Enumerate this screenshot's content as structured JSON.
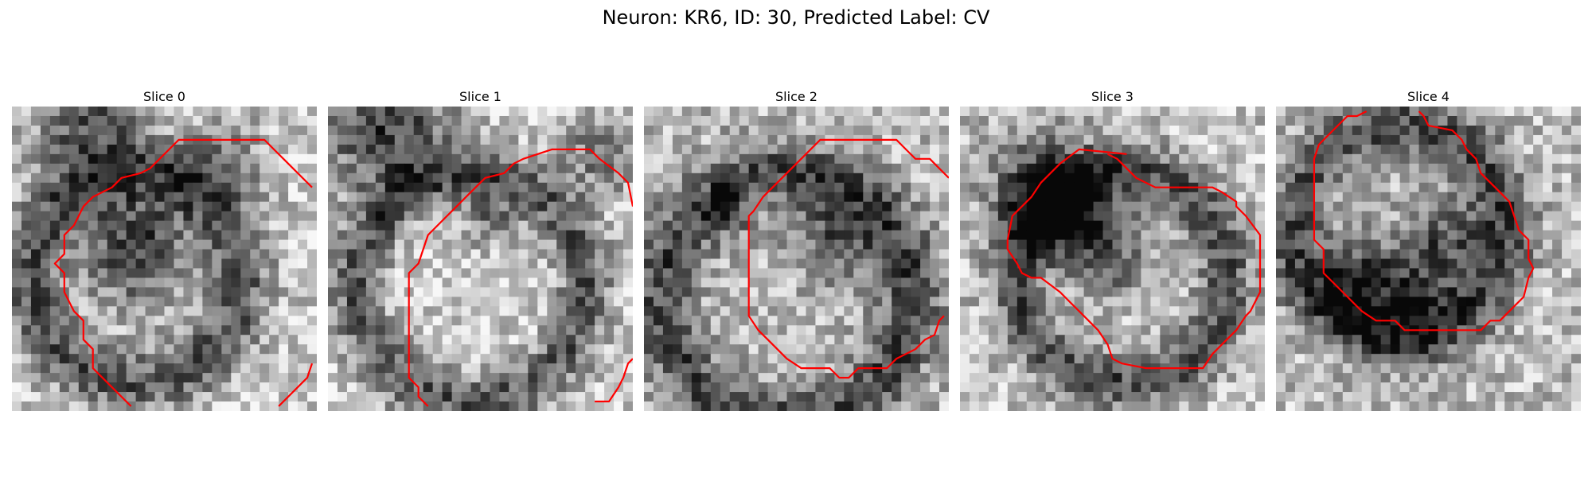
{
  "figure": {
    "title": "Neuron: KR6, ID: 30, Predicted Label: CV",
    "contour_color": "#ff0000",
    "colormap": "gray",
    "panels": [
      {
        "title": "Slice 0"
      },
      {
        "title": "Slice 1"
      },
      {
        "title": "Slice 2"
      },
      {
        "title": "Slice 3"
      },
      {
        "title": "Slice 4"
      }
    ]
  }
}
